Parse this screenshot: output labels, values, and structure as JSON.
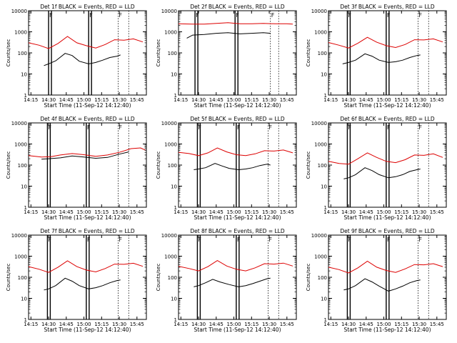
{
  "figure": {
    "xlabel": "Start Time (11-Sep-12 14:12:40)",
    "ylabel": "Counts/sec"
  },
  "x_ticks": [
    "14:15",
    "14:30",
    "14:45",
    "15:00",
    "15:15",
    "15:30",
    "15:45"
  ],
  "y_ticks": [
    "1",
    "10",
    "100",
    "1000",
    "10000"
  ],
  "colors": {
    "black_series": "#000000",
    "red_series": "#dd0000",
    "axes": "#000000"
  },
  "chart_data": [
    {
      "type": "line",
      "title": "Det 1f BLACK = Events, RED = LLD",
      "xlabel": "Start Time (11-Sep-12 14:12:40)",
      "ylabel": "Counts/sec",
      "xlim": [
        "14:13",
        "15:53"
      ],
      "ylim": [
        1,
        10000
      ],
      "yscale": "log",
      "markers": {
        "F": [
          "14:30",
          "15:04",
          "15:29"
        ]
      },
      "series": [
        {
          "name": "BLACK",
          "x": [
            "14:26",
            "14:30",
            "14:36",
            "14:44",
            "14:50",
            "14:56",
            "15:04",
            "15:10",
            "15:16",
            "15:22",
            "15:28",
            "15:31"
          ],
          "y": [
            25,
            30,
            42,
            95,
            75,
            40,
            30,
            35,
            45,
            60,
            70,
            80
          ]
        },
        {
          "name": "RED",
          "x": [
            "14:13",
            "14:22",
            "14:30",
            "14:38",
            "14:46",
            "14:54",
            "15:02",
            "15:10",
            "15:18",
            "15:26",
            "15:34",
            "15:42",
            "15:50"
          ],
          "y": [
            300,
            230,
            160,
            280,
            600,
            300,
            220,
            170,
            250,
            420,
            400,
            460,
            330
          ]
        }
      ]
    },
    {
      "type": "line",
      "title": "Det 2f BLACK = Events, RED = LLD",
      "xlabel": "Start Time (11-Sep-12 14:12:40)",
      "ylabel": "Counts/sec",
      "xlim": [
        "14:13",
        "15:53"
      ],
      "ylim": [
        1,
        10000
      ],
      "yscale": "log",
      "markers": {
        "F": [
          "14:27",
          "15:01",
          "15:31"
        ]
      },
      "series": [
        {
          "name": "BLACK",
          "x": [
            "14:20",
            "14:25",
            "14:35",
            "14:45",
            "14:55",
            "15:05",
            "15:15",
            "15:25",
            "15:31"
          ],
          "y": [
            500,
            700,
            750,
            850,
            900,
            800,
            850,
            900,
            850
          ]
        },
        {
          "name": "RED",
          "x": [
            "14:13",
            "14:25",
            "14:35",
            "14:45",
            "14:55",
            "15:05",
            "15:15",
            "15:25",
            "15:35",
            "15:45",
            "15:50"
          ],
          "y": [
            2400,
            2300,
            2300,
            2500,
            2700,
            2400,
            2400,
            2500,
            2400,
            2400,
            2300
          ]
        }
      ]
    },
    {
      "type": "line",
      "title": "Det 3f BLACK = Events, RED = LLD",
      "xlabel": "Start Time (11-Sep-12 14:12:40)",
      "ylabel": "Counts/sec",
      "xlim": [
        "14:13",
        "15:53"
      ],
      "ylim": [
        1,
        10000
      ],
      "yscale": "log",
      "markers": {
        "F": [
          "14:29",
          "15:02",
          "15:29"
        ]
      },
      "series": [
        {
          "name": "BLACK",
          "x": [
            "14:25",
            "14:30",
            "14:36",
            "14:44",
            "14:50",
            "14:56",
            "15:04",
            "15:10",
            "15:16",
            "15:22",
            "15:28",
            "15:31"
          ],
          "y": [
            30,
            35,
            45,
            90,
            70,
            45,
            35,
            38,
            45,
            60,
            75,
            80
          ]
        },
        {
          "name": "RED",
          "x": [
            "14:13",
            "14:22",
            "14:30",
            "14:38",
            "14:46",
            "14:54",
            "15:02",
            "15:10",
            "15:18",
            "15:26",
            "15:34",
            "15:42",
            "15:50"
          ],
          "y": [
            310,
            230,
            170,
            290,
            550,
            320,
            220,
            180,
            250,
            420,
            410,
            460,
            330
          ]
        }
      ]
    },
    {
      "type": "line",
      "title": "Det 4f BLACK = Events, RED = LLD",
      "xlabel": "Start Time (11-Sep-12 14:12:40)",
      "ylabel": "Counts/sec",
      "xlim": [
        "14:13",
        "15:53"
      ],
      "ylim": [
        1,
        10000
      ],
      "yscale": "log",
      "markers": {
        "F": [
          "14:29",
          "15:02",
          "15:29"
        ]
      },
      "series": [
        {
          "name": "BLACK",
          "x": [
            "14:24",
            "14:30",
            "14:40",
            "14:50",
            "15:00",
            "15:10",
            "15:20",
            "15:30",
            "15:38"
          ],
          "y": [
            190,
            200,
            220,
            270,
            240,
            210,
            230,
            330,
            420
          ]
        },
        {
          "name": "RED",
          "x": [
            "14:13",
            "14:24",
            "14:32",
            "14:40",
            "14:50",
            "15:00",
            "15:10",
            "15:20",
            "15:30",
            "15:40",
            "15:48",
            "15:52"
          ],
          "y": [
            280,
            240,
            250,
            300,
            350,
            310,
            260,
            300,
            400,
            600,
            650,
            520
          ]
        }
      ]
    },
    {
      "type": "line",
      "title": "Det 5f BLACK = Events, RED = LLD",
      "xlabel": "Start Time (11-Sep-12 14:12:40)",
      "ylabel": "Counts/sec",
      "xlim": [
        "14:13",
        "15:53"
      ],
      "ylim": [
        1,
        10000
      ],
      "yscale": "log",
      "markers": {
        "F": [
          "14:29",
          "15:02",
          "15:29"
        ]
      },
      "series": [
        {
          "name": "BLACK",
          "x": [
            "14:26",
            "14:30",
            "14:36",
            "14:44",
            "14:50",
            "14:56",
            "15:04",
            "15:10",
            "15:16",
            "15:22",
            "15:28",
            "15:31"
          ],
          "y": [
            60,
            65,
            75,
            120,
            90,
            70,
            60,
            65,
            75,
            95,
            110,
            100
          ]
        },
        {
          "name": "RED",
          "x": [
            "14:13",
            "14:22",
            "14:30",
            "14:38",
            "14:46",
            "14:54",
            "15:02",
            "15:10",
            "15:18",
            "15:26",
            "15:34",
            "15:42",
            "15:50"
          ],
          "y": [
            400,
            350,
            280,
            380,
            650,
            420,
            310,
            280,
            340,
            480,
            460,
            520,
            380
          ]
        }
      ]
    },
    {
      "type": "line",
      "title": "Det 6f BLACK = Events, RED = LLD",
      "xlabel": "Start Time (11-Sep-12 14:12:40)",
      "ylabel": "Counts/sec",
      "xlim": [
        "14:13",
        "15:53"
      ],
      "ylim": [
        1,
        10000
      ],
      "yscale": "log",
      "markers": {
        "F": [
          "14:29",
          "15:02",
          "15:29"
        ]
      },
      "series": [
        {
          "name": "BLACK",
          "x": [
            "14:26",
            "14:30",
            "14:36",
            "14:44",
            "14:50",
            "14:56",
            "15:04",
            "15:10",
            "15:16",
            "15:22",
            "15:28",
            "15:31"
          ],
          "y": [
            22,
            25,
            35,
            75,
            55,
            35,
            25,
            28,
            35,
            50,
            60,
            65
          ]
        },
        {
          "name": "RED",
          "x": [
            "14:13",
            "14:22",
            "14:30",
            "14:38",
            "14:46",
            "14:54",
            "15:02",
            "15:10",
            "15:18",
            "15:26",
            "15:34",
            "15:42",
            "15:50"
          ],
          "y": [
            150,
            120,
            110,
            200,
            380,
            230,
            150,
            130,
            180,
            300,
            290,
            340,
            230
          ]
        }
      ]
    },
    {
      "type": "line",
      "title": "Det 7f BLACK = Events, RED = LLD",
      "xlabel": "Start Time (11-Sep-12 14:12:40)",
      "ylabel": "Counts/sec",
      "xlim": [
        "14:13",
        "15:53"
      ],
      "ylim": [
        1,
        10000
      ],
      "yscale": "log",
      "markers": {
        "F": [
          "14:29",
          "15:02",
          "15:29"
        ]
      },
      "series": [
        {
          "name": "BLACK",
          "x": [
            "14:26",
            "14:30",
            "14:36",
            "14:44",
            "14:50",
            "14:56",
            "15:04",
            "15:10",
            "15:16",
            "15:22",
            "15:28",
            "15:31"
          ],
          "y": [
            25,
            28,
            40,
            90,
            65,
            40,
            28,
            32,
            40,
            55,
            70,
            75
          ]
        },
        {
          "name": "RED",
          "x": [
            "14:13",
            "14:22",
            "14:30",
            "14:38",
            "14:46",
            "14:54",
            "15:02",
            "15:10",
            "15:18",
            "15:26",
            "15:34",
            "15:42",
            "15:50"
          ],
          "y": [
            320,
            240,
            170,
            300,
            600,
            320,
            220,
            180,
            260,
            420,
            410,
            460,
            330
          ]
        }
      ]
    },
    {
      "type": "line",
      "title": "Det 8f BLACK = Events, RED = LLD",
      "xlabel": "Start Time (11-Sep-12 14:12:40)",
      "ylabel": "Counts/sec",
      "xlim": [
        "14:13",
        "15:53"
      ],
      "ylim": [
        1,
        10000
      ],
      "yscale": "log",
      "markers": {
        "F": [
          "14:29",
          "15:02",
          "15:29"
        ]
      },
      "series": [
        {
          "name": "BLACK",
          "x": [
            "14:26",
            "14:30",
            "14:36",
            "14:42",
            "14:48",
            "14:56",
            "15:04",
            "15:10",
            "15:16",
            "15:22",
            "15:28",
            "15:31"
          ],
          "y": [
            35,
            40,
            55,
            80,
            60,
            45,
            35,
            40,
            50,
            65,
            85,
            90
          ]
        },
        {
          "name": "RED",
          "x": [
            "14:13",
            "14:22",
            "14:30",
            "14:38",
            "14:46",
            "14:54",
            "15:02",
            "15:10",
            "15:18",
            "15:26",
            "15:34",
            "15:42",
            "15:50"
          ],
          "y": [
            330,
            260,
            200,
            320,
            620,
            340,
            240,
            200,
            280,
            440,
            420,
            470,
            340
          ]
        }
      ]
    },
    {
      "type": "line",
      "title": "Det 9f BLACK = Events, RED = LLD",
      "xlabel": "Start Time (11-Sep-12 14:12:40)",
      "ylabel": "Counts/sec",
      "xlim": [
        "14:13",
        "15:53"
      ],
      "ylim": [
        1,
        10000
      ],
      "yscale": "log",
      "markers": {
        "F": [
          "14:29",
          "15:02",
          "15:29"
        ]
      },
      "series": [
        {
          "name": "BLACK",
          "x": [
            "14:26",
            "14:30",
            "14:36",
            "14:44",
            "14:50",
            "14:56",
            "15:04",
            "15:10",
            "15:16",
            "15:22",
            "15:28",
            "15:31"
          ],
          "y": [
            25,
            28,
            40,
            85,
            60,
            38,
            22,
            28,
            38,
            55,
            70,
            75
          ]
        },
        {
          "name": "RED",
          "x": [
            "14:13",
            "14:22",
            "14:30",
            "14:38",
            "14:46",
            "14:54",
            "15:02",
            "15:10",
            "15:18",
            "15:26",
            "15:34",
            "15:42",
            "15:50"
          ],
          "y": [
            300,
            230,
            160,
            280,
            580,
            300,
            210,
            170,
            250,
            400,
            390,
            440,
            320
          ]
        }
      ]
    }
  ]
}
